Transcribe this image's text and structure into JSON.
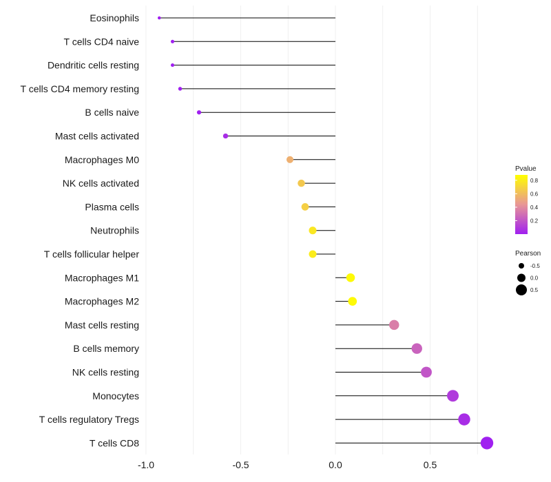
{
  "chart_data": {
    "type": "lollipop",
    "title": "",
    "xlabel": "",
    "ylabel": "",
    "xlim": [
      -1.0,
      0.8
    ],
    "x_ticks": [
      -1.0,
      -0.5,
      0.0,
      0.5
    ],
    "x_tick_labels": [
      "-1.0",
      "-0.5",
      "0.0",
      "0.5"
    ],
    "grid": true,
    "categories": [
      "Eosinophils",
      "T cells CD4 naive",
      "Dendritic cells resting",
      "T cells CD4 memory resting",
      "B cells naive",
      "Mast cells activated",
      "Macrophages M0",
      "NK cells activated",
      "Plasma cells",
      "Neutrophils",
      "T cells follicular helper",
      "Macrophages M1",
      "Macrophages M2",
      "Mast cells resting",
      "B cells memory",
      "NK cells resting",
      "Monocytes",
      "T cells regulatory  Tregs",
      "T cells CD8"
    ],
    "pearson": [
      -0.93,
      -0.86,
      -0.86,
      -0.82,
      -0.72,
      -0.58,
      -0.24,
      -0.18,
      -0.16,
      -0.12,
      -0.12,
      0.08,
      0.09,
      0.31,
      0.43,
      0.48,
      0.62,
      0.68,
      0.8
    ],
    "pvalue": [
      0.0,
      0.0,
      0.0,
      0.0,
      0.0,
      0.05,
      0.55,
      0.65,
      0.68,
      0.78,
      0.8,
      0.86,
      0.86,
      0.35,
      0.25,
      0.2,
      0.1,
      0.05,
      0.0
    ],
    "color_legend": {
      "title": "Pvalue",
      "ticks": [
        0.2,
        0.4,
        0.6,
        0.8
      ],
      "tick_labels": [
        "0.2",
        "0.4",
        "0.6",
        "0.8"
      ],
      "range": [
        0.0,
        0.88
      ],
      "low_color": "#a020f0",
      "high_color": "#ffff00"
    },
    "size_legend": {
      "title": "Pearson",
      "values": [
        -0.5,
        0.0,
        0.5
      ],
      "labels": [
        "-0.5",
        "0.0",
        "0.5"
      ]
    }
  }
}
